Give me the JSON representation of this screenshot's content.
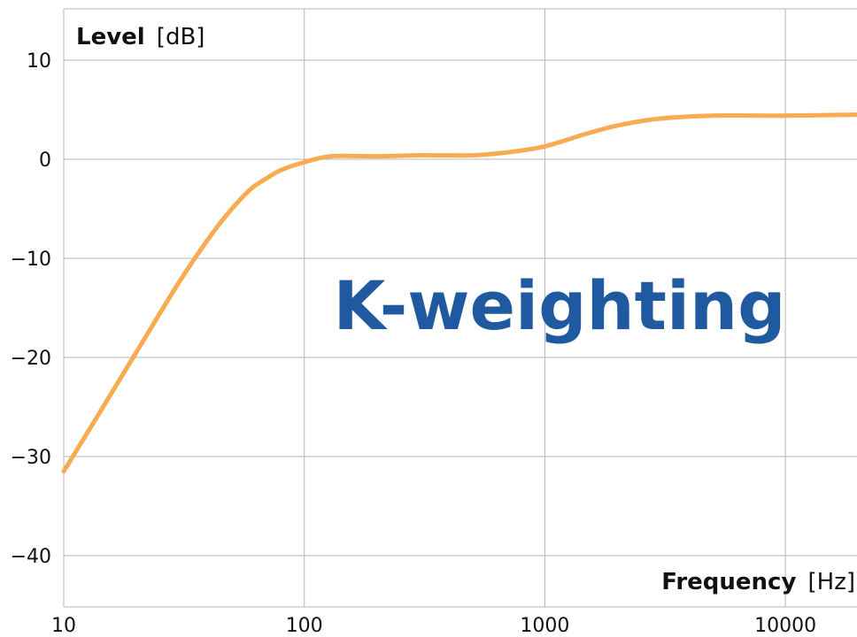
{
  "chart_data": {
    "type": "line",
    "annotation": "K-weighting",
    "ylabel": "Level",
    "ylabel_unit": "[dB]",
    "xlabel": "Frequency",
    "xlabel_unit": "[Hz]",
    "x_scale": "log",
    "xlim": [
      10,
      20000
    ],
    "ylim": [
      -45,
      15
    ],
    "x_ticks": [
      10,
      100,
      1000,
      10000
    ],
    "x_tick_labels": [
      "10",
      "100",
      "1000",
      "10000"
    ],
    "y_ticks": [
      10,
      0,
      -10,
      -20,
      -30,
      -40
    ],
    "y_tick_labels": [
      "10",
      "0",
      "−10",
      "−20",
      "−30",
      "−40"
    ],
    "grid": true,
    "series": [
      {
        "color": "#f9ab52",
        "x": [
          10,
          15,
          20,
          30,
          40,
          50,
          60,
          70,
          80,
          100,
          130,
          200,
          300,
          500,
          700,
          1000,
          1500,
          2000,
          3000,
          5000,
          10000,
          20000
        ],
        "y": [
          -31.5,
          -24.5,
          -19.5,
          -12.5,
          -8.0,
          -5.0,
          -3.0,
          -1.9,
          -1.1,
          -0.3,
          0.3,
          0.3,
          0.4,
          0.4,
          0.7,
          1.3,
          2.6,
          3.4,
          4.1,
          4.4,
          4.4,
          4.5
        ]
      }
    ]
  },
  "colors": {
    "grid": "#b5b5b5",
    "annotation": "#1f5aa0"
  }
}
